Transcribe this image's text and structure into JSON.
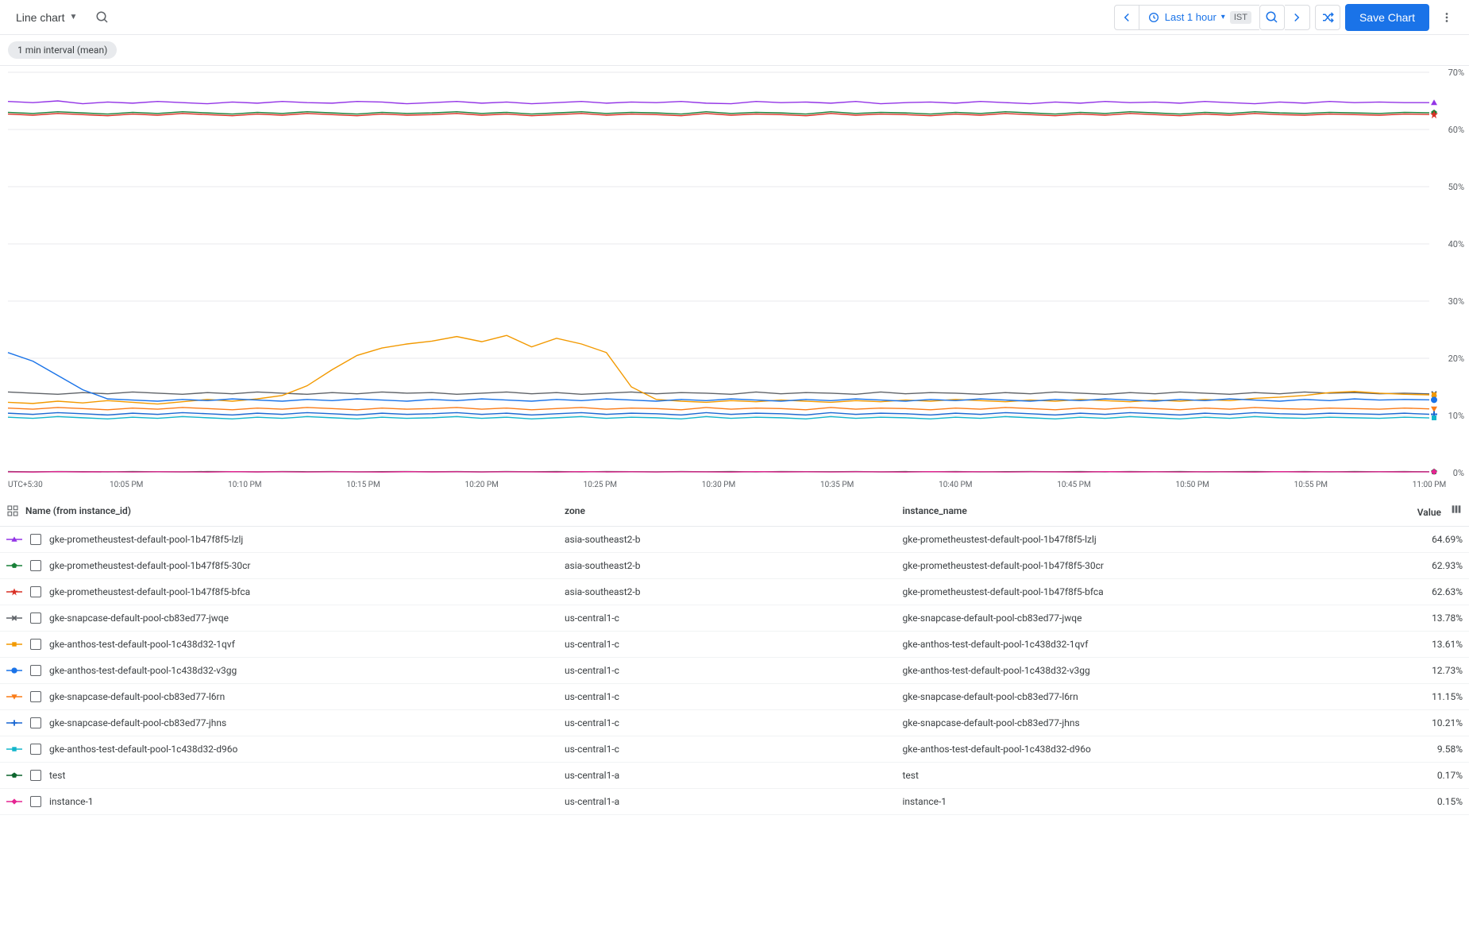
{
  "toolbar": {
    "chart_type_label": "Line chart",
    "time_range_label": "Last 1 hour",
    "timezone_badge": "IST",
    "save_button_label": "Save Chart"
  },
  "interval_chip": "1 min interval (mean)",
  "chart": {
    "type": "line",
    "y_axis": {
      "min": 0,
      "max": 70,
      "tick_step": 10,
      "tick_suffix": "%",
      "ticks": [
        0,
        10,
        20,
        30,
        40,
        50,
        60,
        70
      ]
    },
    "x_axis": {
      "tz_label": "UTC+5:30",
      "ticks": [
        "10:05 PM",
        "10:10 PM",
        "10:15 PM",
        "10:20 PM",
        "10:25 PM",
        "10:30 PM",
        "10:35 PM",
        "10:40 PM",
        "10:45 PM",
        "10:50 PM",
        "10:55 PM",
        "11:00 PM"
      ]
    },
    "grid_color": "#e8eaed",
    "background_color": "#ffffff",
    "label_color": "#5f6368",
    "label_fontsize": 11,
    "series": [
      {
        "id": "s0",
        "color": "#9334e6",
        "marker": "triangle",
        "values": [
          64.9,
          64.7,
          65.0,
          64.5,
          64.8,
          64.6,
          64.9,
          64.7,
          64.5,
          64.8,
          64.6,
          64.9,
          64.7,
          64.6,
          64.9,
          64.8,
          64.5,
          64.7,
          64.9,
          64.6,
          64.8,
          64.5,
          64.7,
          64.9,
          64.6,
          64.8,
          64.7,
          64.9,
          64.6,
          64.5,
          64.9,
          64.7,
          64.8,
          64.6,
          64.9,
          64.5,
          64.7,
          64.8,
          64.6,
          64.9,
          64.7,
          64.5,
          64.8,
          64.6,
          64.9,
          64.7,
          64.8,
          64.6,
          64.9,
          64.7,
          64.5,
          64.8,
          64.6,
          64.9,
          64.7,
          64.8,
          64.7,
          64.69
        ]
      },
      {
        "id": "s1",
        "color": "#188038",
        "marker": "pentagon",
        "values": [
          63.0,
          62.8,
          63.1,
          62.9,
          62.7,
          63.0,
          62.8,
          63.1,
          62.9,
          62.7,
          63.0,
          62.8,
          63.1,
          62.9,
          62.7,
          63.0,
          62.8,
          62.9,
          63.1,
          62.8,
          63.0,
          62.7,
          62.9,
          63.1,
          62.8,
          63.0,
          62.9,
          62.7,
          63.1,
          62.8,
          63.0,
          62.9,
          62.7,
          63.1,
          62.8,
          63.0,
          62.9,
          62.7,
          63.0,
          62.8,
          63.1,
          62.9,
          62.7,
          63.0,
          62.8,
          63.1,
          62.9,
          62.7,
          63.0,
          62.8,
          63.1,
          62.9,
          62.8,
          63.0,
          62.9,
          62.8,
          63.0,
          62.93
        ]
      },
      {
        "id": "s2",
        "color": "#d93025",
        "marker": "star",
        "values": [
          62.7,
          62.5,
          62.8,
          62.6,
          62.4,
          62.7,
          62.5,
          62.8,
          62.6,
          62.4,
          62.7,
          62.5,
          62.8,
          62.6,
          62.4,
          62.7,
          62.5,
          62.6,
          62.8,
          62.5,
          62.7,
          62.4,
          62.6,
          62.8,
          62.5,
          62.7,
          62.6,
          62.4,
          62.8,
          62.5,
          62.7,
          62.6,
          62.4,
          62.8,
          62.5,
          62.7,
          62.6,
          62.4,
          62.7,
          62.5,
          62.8,
          62.6,
          62.4,
          62.7,
          62.5,
          62.8,
          62.6,
          62.4,
          62.7,
          62.5,
          62.8,
          62.6,
          62.5,
          62.7,
          62.6,
          62.5,
          62.7,
          62.63
        ]
      },
      {
        "id": "s3",
        "color": "#5f6368",
        "marker": "x",
        "values": [
          14.1,
          13.9,
          13.7,
          14.0,
          13.8,
          14.1,
          13.9,
          13.7,
          14.0,
          13.8,
          14.1,
          13.9,
          13.7,
          14.0,
          13.8,
          14.1,
          13.9,
          14.0,
          13.7,
          13.9,
          14.1,
          13.8,
          14.0,
          13.7,
          13.9,
          14.1,
          13.8,
          14.0,
          13.9,
          13.7,
          14.1,
          13.8,
          14.0,
          13.9,
          13.7,
          14.1,
          13.8,
          14.0,
          13.9,
          13.7,
          14.0,
          13.8,
          14.1,
          13.9,
          13.7,
          14.0,
          13.8,
          14.1,
          13.9,
          13.7,
          14.0,
          13.8,
          14.1,
          13.9,
          14.0,
          13.8,
          13.9,
          13.78
        ]
      },
      {
        "id": "s4",
        "color": "#f29900",
        "marker": "square",
        "values": [
          12.3,
          12.1,
          12.5,
          12.2,
          12.6,
          12.3,
          12.0,
          12.4,
          12.8,
          12.5,
          12.9,
          13.5,
          15.2,
          18.0,
          20.5,
          21.8,
          22.5,
          23.0,
          23.8,
          22.9,
          24.0,
          22.0,
          23.5,
          22.5,
          21.0,
          15.0,
          12.8,
          12.5,
          12.3,
          12.6,
          12.4,
          12.7,
          12.5,
          12.3,
          12.6,
          12.4,
          12.7,
          12.5,
          12.8,
          12.6,
          12.4,
          12.7,
          12.5,
          12.8,
          12.6,
          12.4,
          12.7,
          12.5,
          12.8,
          12.6,
          13.0,
          13.2,
          13.5,
          14.0,
          14.2,
          13.9,
          13.7,
          13.61
        ]
      },
      {
        "id": "s5",
        "color": "#1a73e8",
        "marker": "circle",
        "values": [
          21.0,
          19.5,
          17.0,
          14.5,
          12.9,
          12.7,
          12.5,
          12.8,
          12.6,
          12.9,
          12.7,
          12.5,
          12.8,
          12.6,
          12.9,
          12.7,
          12.5,
          12.8,
          12.6,
          12.9,
          12.7,
          12.5,
          12.8,
          12.6,
          12.9,
          12.7,
          12.5,
          12.8,
          12.6,
          12.9,
          12.7,
          12.5,
          12.8,
          12.6,
          12.9,
          12.7,
          12.5,
          12.8,
          12.6,
          12.9,
          12.7,
          12.5,
          12.8,
          12.6,
          12.9,
          12.7,
          12.5,
          12.8,
          12.6,
          12.9,
          12.7,
          12.5,
          12.8,
          12.6,
          12.9,
          12.7,
          12.8,
          12.73
        ]
      },
      {
        "id": "s6",
        "color": "#fa7b17",
        "marker": "triangle-down",
        "values": [
          11.3,
          11.1,
          11.4,
          11.2,
          11.0,
          11.3,
          11.1,
          11.4,
          11.2,
          11.0,
          11.3,
          11.1,
          11.4,
          11.2,
          11.0,
          11.3,
          11.1,
          11.2,
          11.4,
          11.1,
          11.3,
          11.0,
          11.2,
          11.4,
          11.1,
          11.3,
          11.2,
          11.0,
          11.4,
          11.1,
          11.3,
          11.2,
          11.0,
          11.4,
          11.1,
          11.3,
          11.2,
          11.0,
          11.3,
          11.1,
          11.4,
          11.2,
          11.0,
          11.3,
          11.1,
          11.4,
          11.2,
          11.0,
          11.3,
          11.1,
          11.4,
          11.2,
          11.1,
          11.3,
          11.2,
          11.1,
          11.3,
          11.15
        ]
      },
      {
        "id": "s7",
        "color": "#1967d2",
        "marker": "plus",
        "values": [
          10.4,
          10.2,
          10.5,
          10.3,
          10.1,
          10.4,
          10.2,
          10.5,
          10.3,
          10.1,
          10.4,
          10.2,
          10.5,
          10.3,
          10.1,
          10.4,
          10.2,
          10.3,
          10.5,
          10.2,
          10.4,
          10.1,
          10.3,
          10.5,
          10.2,
          10.4,
          10.3,
          10.1,
          10.5,
          10.2,
          10.4,
          10.3,
          10.1,
          10.5,
          10.2,
          10.4,
          10.3,
          10.1,
          10.4,
          10.2,
          10.5,
          10.3,
          10.1,
          10.4,
          10.2,
          10.5,
          10.3,
          10.1,
          10.4,
          10.2,
          10.5,
          10.3,
          10.2,
          10.4,
          10.3,
          10.2,
          10.4,
          10.21
        ]
      },
      {
        "id": "s8",
        "color": "#12b5cb",
        "marker": "square",
        "values": [
          9.7,
          9.5,
          9.8,
          9.6,
          9.4,
          9.7,
          9.5,
          9.8,
          9.6,
          9.4,
          9.7,
          9.5,
          9.8,
          9.6,
          9.4,
          9.7,
          9.5,
          9.6,
          9.8,
          9.5,
          9.7,
          9.4,
          9.6,
          9.8,
          9.5,
          9.7,
          9.6,
          9.4,
          9.8,
          9.5,
          9.7,
          9.6,
          9.4,
          9.8,
          9.5,
          9.7,
          9.6,
          9.4,
          9.7,
          9.5,
          9.8,
          9.6,
          9.4,
          9.7,
          9.5,
          9.8,
          9.6,
          9.4,
          9.7,
          9.5,
          9.8,
          9.6,
          9.5,
          9.7,
          9.6,
          9.5,
          9.7,
          9.58
        ]
      },
      {
        "id": "s9",
        "color": "#0d652d",
        "marker": "pentagon",
        "values": [
          0.2,
          0.15,
          0.2,
          0.18,
          0.15,
          0.2,
          0.17,
          0.15,
          0.2,
          0.18,
          0.15,
          0.2,
          0.17,
          0.2,
          0.15,
          0.18,
          0.2,
          0.16,
          0.19,
          0.15,
          0.2,
          0.17,
          0.19,
          0.15,
          0.2,
          0.18,
          0.15,
          0.2,
          0.17,
          0.19,
          0.15,
          0.2,
          0.18,
          0.16,
          0.2,
          0.15,
          0.19,
          0.17,
          0.2,
          0.15,
          0.18,
          0.2,
          0.16,
          0.19,
          0.15,
          0.2,
          0.17,
          0.2,
          0.15,
          0.18,
          0.2,
          0.16,
          0.19,
          0.15,
          0.2,
          0.17,
          0.19,
          0.17
        ]
      },
      {
        "id": "s10",
        "color": "#e52592",
        "marker": "diamond",
        "values": [
          0.15,
          0.12,
          0.18,
          0.14,
          0.16,
          0.13,
          0.17,
          0.15,
          0.12,
          0.18,
          0.14,
          0.16,
          0.13,
          0.17,
          0.15,
          0.12,
          0.18,
          0.14,
          0.16,
          0.13,
          0.17,
          0.15,
          0.12,
          0.18,
          0.14,
          0.16,
          0.13,
          0.17,
          0.15,
          0.12,
          0.18,
          0.14,
          0.16,
          0.13,
          0.17,
          0.15,
          0.12,
          0.18,
          0.14,
          0.16,
          0.13,
          0.17,
          0.15,
          0.12,
          0.18,
          0.14,
          0.16,
          0.13,
          0.17,
          0.15,
          0.12,
          0.18,
          0.14,
          0.16,
          0.13,
          0.17,
          0.14,
          0.15
        ]
      }
    ]
  },
  "legend": {
    "columns": {
      "name": "Name (from instance_id)",
      "zone": "zone",
      "instance_name": "instance_name",
      "value": "Value"
    },
    "rows": [
      {
        "series_id": "s0",
        "name": "gke-prometheustest-default-pool-1b47f8f5-lzlj",
        "zone": "asia-southeast2-b",
        "instance_name": "gke-prometheustest-default-pool-1b47f8f5-lzlj",
        "value": "64.69%"
      },
      {
        "series_id": "s1",
        "name": "gke-prometheustest-default-pool-1b47f8f5-30cr",
        "zone": "asia-southeast2-b",
        "instance_name": "gke-prometheustest-default-pool-1b47f8f5-30cr",
        "value": "62.93%"
      },
      {
        "series_id": "s2",
        "name": "gke-prometheustest-default-pool-1b47f8f5-bfca",
        "zone": "asia-southeast2-b",
        "instance_name": "gke-prometheustest-default-pool-1b47f8f5-bfca",
        "value": "62.63%"
      },
      {
        "series_id": "s3",
        "name": "gke-snapcase-default-pool-cb83ed77-jwqe",
        "zone": "us-central1-c",
        "instance_name": "gke-snapcase-default-pool-cb83ed77-jwqe",
        "value": "13.78%"
      },
      {
        "series_id": "s4",
        "name": "gke-anthos-test-default-pool-1c438d32-1qvf",
        "zone": "us-central1-c",
        "instance_name": "gke-anthos-test-default-pool-1c438d32-1qvf",
        "value": "13.61%"
      },
      {
        "series_id": "s5",
        "name": "gke-anthos-test-default-pool-1c438d32-v3gg",
        "zone": "us-central1-c",
        "instance_name": "gke-anthos-test-default-pool-1c438d32-v3gg",
        "value": "12.73%"
      },
      {
        "series_id": "s6",
        "name": "gke-snapcase-default-pool-cb83ed77-l6rn",
        "zone": "us-central1-c",
        "instance_name": "gke-snapcase-default-pool-cb83ed77-l6rn",
        "value": "11.15%"
      },
      {
        "series_id": "s7",
        "name": "gke-snapcase-default-pool-cb83ed77-jhns",
        "zone": "us-central1-c",
        "instance_name": "gke-snapcase-default-pool-cb83ed77-jhns",
        "value": "10.21%"
      },
      {
        "series_id": "s8",
        "name": "gke-anthos-test-default-pool-1c438d32-d96o",
        "zone": "us-central1-c",
        "instance_name": "gke-anthos-test-default-pool-1c438d32-d96o",
        "value": "9.58%"
      },
      {
        "series_id": "s9",
        "name": "test",
        "zone": "us-central1-a",
        "instance_name": "test",
        "value": "0.17%"
      },
      {
        "series_id": "s10",
        "name": "instance-1",
        "zone": "us-central1-a",
        "instance_name": "instance-1",
        "value": "0.15%"
      }
    ]
  }
}
